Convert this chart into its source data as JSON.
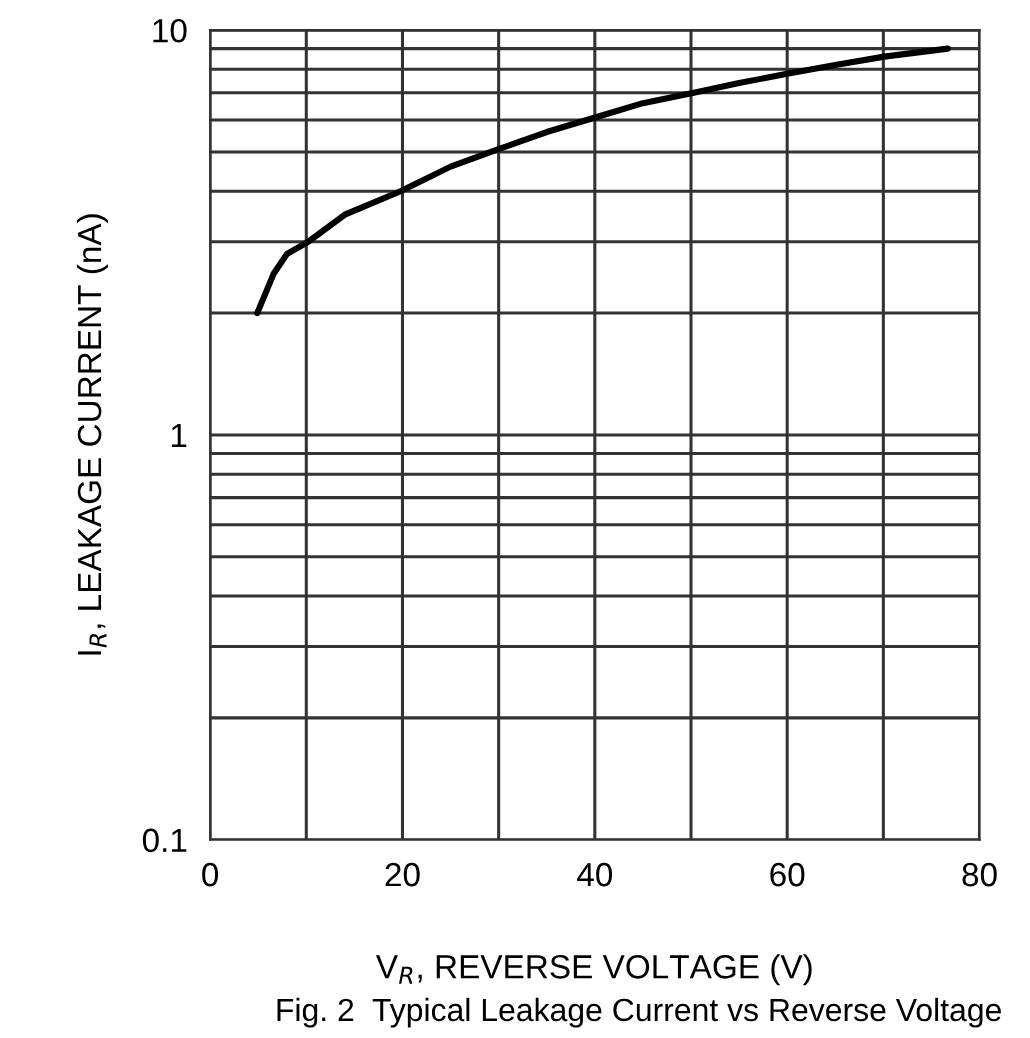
{
  "chart_data": {
    "type": "line",
    "xlabel": "V$_{R}$, REVERSE VOLTAGE (V)",
    "ylabel": "I$_{R}$, LEAKAGE CURRENT (nA)",
    "annotations": [
      "Fig. 2  Typical Leakage Current vs Reverse Voltage"
    ],
    "x": [
      4.9,
      6.6,
      8,
      10.2,
      14,
      19.8,
      25,
      30.2,
      35,
      40.2,
      45,
      50.3,
      55,
      60,
      65,
      70.1,
      76.7
    ],
    "series": [
      {
        "color": "#000000",
        "values": [
          2,
          2.5,
          2.8,
          3,
          3.5,
          4,
          4.6,
          5.1,
          5.6,
          6.1,
          6.6,
          7,
          7.4,
          7.8,
          8.2,
          8.6,
          9.0
        ]
      }
    ],
    "log": "y",
    "xlim": [
      0,
      80
    ],
    "ylim": [
      0.1,
      10
    ],
    "xticks": [
      0,
      {
        "value": 10,
        "label": null
      },
      20,
      {
        "value": 30,
        "label": null
      },
      40,
      {
        "value": 50,
        "label": null
      },
      60,
      {
        "value": 70,
        "label": null
      },
      80
    ],
    "yticks": [
      0.1,
      {
        "value": 0.2,
        "label": null
      },
      {
        "value": 0.3,
        "label": null
      },
      {
        "value": 0.4,
        "label": null
      },
      {
        "value": 0.5,
        "label": null
      },
      {
        "value": 0.6,
        "label": null
      },
      {
        "value": 0.7,
        "label": null
      },
      {
        "value": 0.8,
        "label": null
      },
      {
        "value": 0.9,
        "label": null
      },
      1,
      {
        "value": 2,
        "label": null
      },
      {
        "value": 3,
        "label": null
      },
      {
        "value": 4,
        "label": null
      },
      {
        "value": 5,
        "label": null
      },
      {
        "value": 6,
        "label": null
      },
      {
        "value": 7,
        "label": null
      },
      {
        "value": 8,
        "label": null
      },
      {
        "value": 9,
        "label": null
      },
      10
    ],
    "grid": true,
    "marker": "none",
    "line_style": "solid"
  }
}
